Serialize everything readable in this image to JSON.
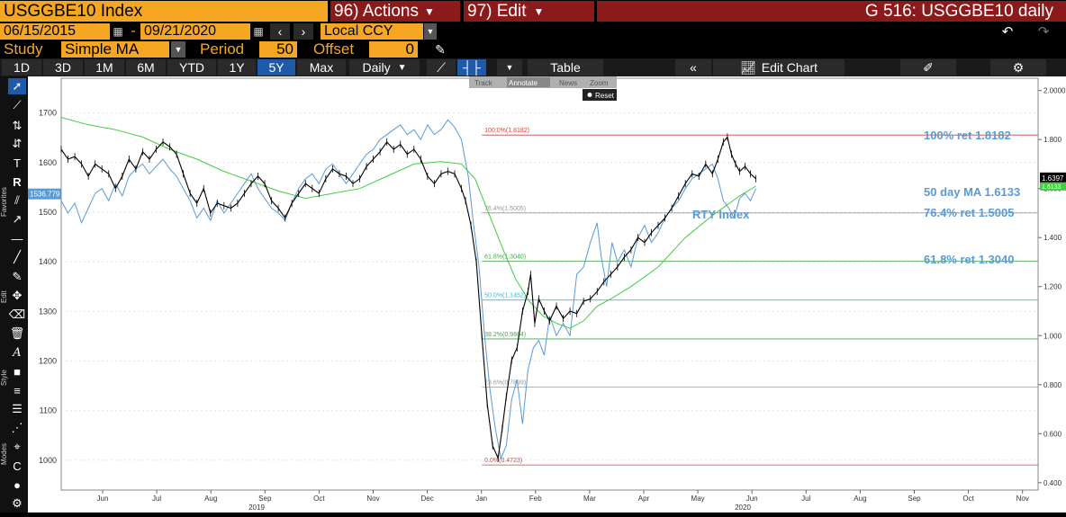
{
  "header": {
    "ticker": "USGGBE10 Index",
    "actions": "96) Actions",
    "edit": "97) Edit",
    "title": "G 516: USGGBE10 daily"
  },
  "controls": {
    "start_date": "06/15/2015",
    "dash": "-",
    "end_date": "09/21/2020",
    "currency": "Local CCY",
    "study_label": "Study",
    "study_value": "Simple MA",
    "period_label": "Period",
    "period_value": "50",
    "offset_label": "Offset",
    "offset_value": "0"
  },
  "ranges": [
    "1D",
    "3D",
    "1M",
    "6M",
    "YTD",
    "1Y",
    "5Y",
    "Max"
  ],
  "active_range": "5Y",
  "frequency": "Daily",
  "table_label": "Table",
  "edit_chart_label": "Edit Chart",
  "mini_toolbar": {
    "track": "Track",
    "annotate": "Annotate",
    "news": "News",
    "zoom": "Zoom",
    "reset": "Reset"
  },
  "sidebar_labels": {
    "favorites": "Favorites",
    "edit": "Edit",
    "style": "Style",
    "modes": "Modes"
  },
  "colors": {
    "accent": "#f5a623",
    "maroon": "#8b1a1a",
    "ma_line": "#44cc44",
    "rty_line": "#5b9bd5",
    "price": "#000000"
  },
  "chart_data": {
    "type": "line",
    "left_axis": {
      "ticks": [
        1000,
        1100,
        1200,
        1300,
        1400,
        1500,
        1600,
        1700
      ],
      "ylim": [
        940,
        1770
      ]
    },
    "right_axis": {
      "ticks": [
        "0.400",
        "0.600",
        "0.800",
        "1.000",
        "1.200",
        "1.400",
        "1.600",
        "1.800",
        "2.0000"
      ],
      "ylim": [
        0.37,
        2.05
      ]
    },
    "x_months": [
      "Jun",
      "Jul",
      "Aug",
      "Sep",
      "Oct",
      "Nov",
      "Dec",
      "Jan",
      "Feb",
      "Mar",
      "Apr",
      "May",
      "Jun",
      "Jul",
      "Aug",
      "Sep",
      "Oct",
      "Nov"
    ],
    "x_years": [
      "2019",
      "2020"
    ],
    "series": [
      {
        "name": "USGGBE10",
        "axis": "right",
        "points": [
          [
            0,
            1.76
          ],
          [
            5,
            1.72
          ],
          [
            10,
            1.73
          ],
          [
            15,
            1.7
          ],
          [
            20,
            1.65
          ],
          [
            25,
            1.7
          ],
          [
            30,
            1.68
          ],
          [
            35,
            1.66
          ],
          [
            40,
            1.6
          ],
          [
            45,
            1.65
          ],
          [
            50,
            1.72
          ],
          [
            55,
            1.68
          ],
          [
            60,
            1.75
          ],
          [
            65,
            1.72
          ],
          [
            70,
            1.76
          ],
          [
            75,
            1.79
          ],
          [
            80,
            1.77
          ],
          [
            85,
            1.74
          ],
          [
            90,
            1.66
          ],
          [
            95,
            1.58
          ],
          [
            100,
            1.54
          ],
          [
            105,
            1.6
          ],
          [
            110,
            1.5
          ],
          [
            115,
            1.54
          ],
          [
            120,
            1.53
          ],
          [
            125,
            1.52
          ],
          [
            130,
            1.54
          ],
          [
            135,
            1.58
          ],
          [
            140,
            1.62
          ],
          [
            145,
            1.65
          ],
          [
            150,
            1.62
          ],
          [
            155,
            1.55
          ],
          [
            160,
            1.52
          ],
          [
            165,
            1.48
          ],
          [
            170,
            1.54
          ],
          [
            175,
            1.58
          ],
          [
            180,
            1.62
          ],
          [
            185,
            1.6
          ],
          [
            190,
            1.58
          ],
          [
            195,
            1.64
          ],
          [
            200,
            1.68
          ],
          [
            205,
            1.66
          ],
          [
            210,
            1.65
          ],
          [
            215,
            1.62
          ],
          [
            220,
            1.64
          ],
          [
            225,
            1.69
          ],
          [
            230,
            1.72
          ],
          [
            235,
            1.75
          ],
          [
            240,
            1.79
          ],
          [
            245,
            1.76
          ],
          [
            250,
            1.78
          ],
          [
            255,
            1.74
          ],
          [
            260,
            1.76
          ],
          [
            265,
            1.72
          ],
          [
            270,
            1.65
          ],
          [
            275,
            1.62
          ],
          [
            280,
            1.66
          ],
          [
            285,
            1.67
          ],
          [
            290,
            1.66
          ],
          [
            295,
            1.6
          ],
          [
            298,
            1.55
          ],
          [
            302,
            1.45
          ],
          [
            306,
            1.3
          ],
          [
            310,
            1.0
          ],
          [
            314,
            0.72
          ],
          [
            318,
            0.55
          ],
          [
            322,
            0.5
          ],
          [
            325,
            0.62
          ],
          [
            328,
            0.75
          ],
          [
            332,
            0.9
          ],
          [
            336,
            0.95
          ],
          [
            340,
            1.1
          ],
          [
            344,
            1.18
          ],
          [
            346,
            1.25
          ],
          [
            349,
            1.05
          ],
          [
            352,
            1.15
          ],
          [
            356,
            1.1
          ],
          [
            360,
            1.06
          ],
          [
            365,
            1.12
          ],
          [
            370,
            1.07
          ],
          [
            375,
            1.1
          ],
          [
            380,
            1.09
          ],
          [
            385,
            1.14
          ],
          [
            390,
            1.15
          ],
          [
            395,
            1.18
          ],
          [
            400,
            1.22
          ],
          [
            405,
            1.25
          ],
          [
            410,
            1.28
          ],
          [
            415,
            1.32
          ],
          [
            420,
            1.35
          ],
          [
            425,
            1.4
          ],
          [
            430,
            1.38
          ],
          [
            435,
            1.42
          ],
          [
            440,
            1.45
          ],
          [
            445,
            1.48
          ],
          [
            450,
            1.52
          ],
          [
            455,
            1.57
          ],
          [
            460,
            1.62
          ],
          [
            465,
            1.66
          ],
          [
            470,
            1.65
          ],
          [
            475,
            1.7
          ],
          [
            480,
            1.66
          ],
          [
            484,
            1.72
          ],
          [
            488,
            1.79
          ],
          [
            491,
            1.81
          ],
          [
            494,
            1.74
          ],
          [
            497,
            1.7
          ],
          [
            500,
            1.67
          ],
          [
            504,
            1.69
          ],
          [
            508,
            1.66
          ],
          [
            512,
            1.64
          ]
        ]
      },
      {
        "name": "50 day MA",
        "axis": "right",
        "points": [
          [
            0,
            1.89
          ],
          [
            20,
            1.86
          ],
          [
            40,
            1.84
          ],
          [
            60,
            1.81
          ],
          [
            80,
            1.76
          ],
          [
            100,
            1.72
          ],
          [
            120,
            1.67
          ],
          [
            140,
            1.63
          ],
          [
            160,
            1.59
          ],
          [
            180,
            1.56
          ],
          [
            200,
            1.58
          ],
          [
            220,
            1.6
          ],
          [
            240,
            1.65
          ],
          [
            260,
            1.7
          ],
          [
            280,
            1.71
          ],
          [
            295,
            1.7
          ],
          [
            305,
            1.64
          ],
          [
            315,
            1.5
          ],
          [
            325,
            1.36
          ],
          [
            335,
            1.23
          ],
          [
            345,
            1.14
          ],
          [
            355,
            1.08
          ],
          [
            365,
            1.05
          ],
          [
            375,
            1.03
          ],
          [
            385,
            1.06
          ],
          [
            395,
            1.12
          ],
          [
            405,
            1.15
          ],
          [
            420,
            1.2
          ],
          [
            440,
            1.28
          ],
          [
            460,
            1.4
          ],
          [
            480,
            1.49
          ],
          [
            500,
            1.57
          ],
          [
            512,
            1.61
          ]
        ]
      },
      {
        "name": "RTY Index",
        "axis": "right",
        "points": [
          [
            0,
            1.55
          ],
          [
            5,
            1.5
          ],
          [
            10,
            1.54
          ],
          [
            15,
            1.46
          ],
          [
            20,
            1.52
          ],
          [
            25,
            1.58
          ],
          [
            30,
            1.6
          ],
          [
            35,
            1.55
          ],
          [
            40,
            1.62
          ],
          [
            45,
            1.57
          ],
          [
            50,
            1.65
          ],
          [
            55,
            1.68
          ],
          [
            60,
            1.7
          ],
          [
            65,
            1.66
          ],
          [
            70,
            1.69
          ],
          [
            75,
            1.72
          ],
          [
            80,
            1.68
          ],
          [
            85,
            1.65
          ],
          [
            90,
            1.6
          ],
          [
            95,
            1.55
          ],
          [
            100,
            1.48
          ],
          [
            105,
            1.52
          ],
          [
            110,
            1.47
          ],
          [
            115,
            1.55
          ],
          [
            120,
            1.5
          ],
          [
            125,
            1.54
          ],
          [
            130,
            1.58
          ],
          [
            135,
            1.62
          ],
          [
            140,
            1.66
          ],
          [
            145,
            1.6
          ],
          [
            150,
            1.56
          ],
          [
            155,
            1.52
          ],
          [
            160,
            1.5
          ],
          [
            165,
            1.47
          ],
          [
            170,
            1.54
          ],
          [
            175,
            1.6
          ],
          [
            180,
            1.64
          ],
          [
            185,
            1.66
          ],
          [
            190,
            1.62
          ],
          [
            195,
            1.68
          ],
          [
            200,
            1.7
          ],
          [
            205,
            1.66
          ],
          [
            210,
            1.62
          ],
          [
            215,
            1.66
          ],
          [
            220,
            1.7
          ],
          [
            225,
            1.74
          ],
          [
            230,
            1.76
          ],
          [
            235,
            1.8
          ],
          [
            240,
            1.82
          ],
          [
            245,
            1.84
          ],
          [
            250,
            1.86
          ],
          [
            255,
            1.82
          ],
          [
            260,
            1.84
          ],
          [
            265,
            1.8
          ],
          [
            270,
            1.86
          ],
          [
            275,
            1.82
          ],
          [
            280,
            1.84
          ],
          [
            285,
            1.88
          ],
          [
            290,
            1.85
          ],
          [
            295,
            1.8
          ],
          [
            300,
            1.65
          ],
          [
            304,
            1.45
          ],
          [
            308,
            1.28
          ],
          [
            312,
            1.0
          ],
          [
            316,
            0.78
          ],
          [
            320,
            0.62
          ],
          [
            324,
            0.5
          ],
          [
            328,
            0.55
          ],
          [
            332,
            0.74
          ],
          [
            336,
            0.82
          ],
          [
            340,
            0.64
          ],
          [
            344,
            0.86
          ],
          [
            348,
            0.95
          ],
          [
            352,
            0.98
          ],
          [
            356,
            0.92
          ],
          [
            360,
            1.08
          ],
          [
            365,
            1.0
          ],
          [
            370,
            1.05
          ],
          [
            375,
            1.0
          ],
          [
            380,
            1.25
          ],
          [
            385,
            1.28
          ],
          [
            390,
            1.38
          ],
          [
            395,
            1.46
          ],
          [
            398,
            1.32
          ],
          [
            402,
            1.2
          ],
          [
            406,
            1.38
          ],
          [
            410,
            1.3
          ],
          [
            415,
            1.35
          ],
          [
            420,
            1.28
          ],
          [
            425,
            1.4
          ],
          [
            430,
            1.45
          ],
          [
            435,
            1.38
          ],
          [
            440,
            1.42
          ],
          [
            445,
            1.48
          ],
          [
            450,
            1.52
          ],
          [
            455,
            1.55
          ],
          [
            460,
            1.6
          ],
          [
            465,
            1.64
          ],
          [
            470,
            1.66
          ],
          [
            475,
            1.68
          ],
          [
            480,
            1.7
          ],
          [
            484,
            1.64
          ],
          [
            488,
            1.55
          ],
          [
            492,
            1.52
          ],
          [
            496,
            1.48
          ],
          [
            500,
            1.56
          ],
          [
            504,
            1.58
          ],
          [
            508,
            1.55
          ],
          [
            512,
            1.6
          ]
        ]
      }
    ],
    "retracements": [
      {
        "label": "100.0%(1.8182)",
        "value": 1.8182,
        "color": "#cc4444"
      },
      {
        "label": "76.4%(1.5005)",
        "value": 1.5005,
        "color": "#999999"
      },
      {
        "label": "61.8%(1.3040)",
        "value": 1.304,
        "color": "#44aa44"
      },
      {
        "label": "50.0%(1.1452)",
        "value": 1.1452,
        "color": "#33bbdd"
      },
      {
        "label": "38.2%(0.9864)",
        "value": 0.9864,
        "color": "#44aa44"
      },
      {
        "label": "23.6%(0.7899)",
        "value": 0.7899,
        "color": "#999999"
      },
      {
        "label": "0.0%(0.4723)",
        "value": 0.4723,
        "color": "#cc4444"
      }
    ],
    "annotations": [
      {
        "text": "100% ret 1.8182",
        "value": 1.8182
      },
      {
        "text": "50 day MA 1.6133",
        "value": 1.6133
      },
      {
        "text": "76.4% ret 1.5005",
        "value": 1.5005
      },
      {
        "text": "61.8% ret 1.3040",
        "value": 1.304
      },
      {
        "text": "RTY Index",
        "value": 1.5
      }
    ],
    "badges": {
      "left": "1536.779",
      "right_price": "1.6397",
      "right_ma": "1.6133"
    }
  }
}
